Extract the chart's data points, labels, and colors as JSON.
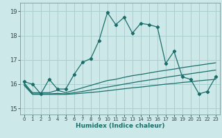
{
  "xlabel": "Humidex (Indice chaleur)",
  "background_color": "#cce8e8",
  "grid_color": "#a8d0d0",
  "line_color": "#1a6e6a",
  "xlim": [
    -0.5,
    23.5
  ],
  "ylim": [
    14.75,
    19.35
  ],
  "yticks": [
    15,
    16,
    17,
    18,
    19
  ],
  "xticks": [
    0,
    1,
    2,
    3,
    4,
    5,
    6,
    7,
    8,
    9,
    10,
    11,
    12,
    13,
    14,
    15,
    16,
    17,
    18,
    19,
    20,
    21,
    22,
    23
  ],
  "main_line": [
    16.1,
    16.0,
    15.6,
    16.2,
    15.8,
    15.8,
    16.4,
    16.9,
    17.05,
    17.8,
    18.95,
    18.45,
    18.75,
    18.1,
    18.5,
    18.45,
    18.35,
    16.85,
    17.35,
    16.3,
    16.2,
    15.6,
    15.7,
    16.3
  ],
  "line2": [
    16.05,
    15.65,
    15.65,
    15.65,
    15.75,
    15.65,
    15.75,
    15.85,
    15.95,
    16.05,
    16.15,
    16.2,
    16.28,
    16.35,
    16.4,
    16.46,
    16.52,
    16.57,
    16.62,
    16.68,
    16.73,
    16.78,
    16.83,
    16.88
  ],
  "line3": [
    16.0,
    15.6,
    15.6,
    15.6,
    15.62,
    15.6,
    15.65,
    15.7,
    15.76,
    15.82,
    15.88,
    15.94,
    16.0,
    16.06,
    16.12,
    16.17,
    16.22,
    16.28,
    16.33,
    16.38,
    16.43,
    16.48,
    16.53,
    16.58
  ],
  "line4": [
    15.95,
    15.58,
    15.58,
    15.58,
    15.58,
    15.58,
    15.6,
    15.63,
    15.66,
    15.69,
    15.73,
    15.77,
    15.81,
    15.85,
    15.88,
    15.92,
    15.96,
    16.0,
    16.03,
    16.07,
    16.1,
    16.14,
    16.17,
    16.2
  ]
}
